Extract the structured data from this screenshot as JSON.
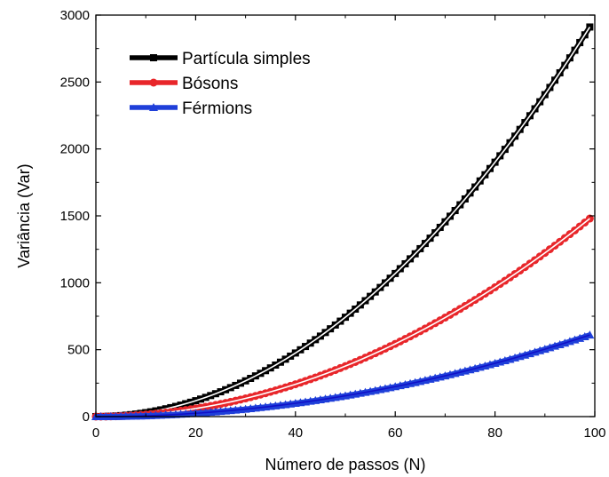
{
  "chart_data": {
    "type": "line",
    "title": "",
    "xlabel": "Número de passos (N)",
    "ylabel": "Variância (Var)",
    "xlim": [
      0,
      100
    ],
    "ylim": [
      0,
      3000
    ],
    "x_ticks": [
      "0",
      "20",
      "40",
      "60",
      "80",
      "100"
    ],
    "y_ticks": [
      "0",
      "500",
      "1000",
      "1500",
      "2000",
      "2500",
      "3000"
    ],
    "grid": false,
    "legend_position": "top-left",
    "x_range_data": [
      0,
      99
    ],
    "series": [
      {
        "name": "Partícula simples",
        "marker": "square",
        "color": "#000000",
        "fit_color": "#ffffff",
        "quadratic_coefficient": 0.297,
        "values_at": {
          "0": 0,
          "20": 119,
          "40": 475,
          "60": 1069,
          "80": 1901,
          "99": 2911
        }
      },
      {
        "name": "Bósons",
        "marker": "circle",
        "color": "#e8262a",
        "fit_color": "#ffffff",
        "quadratic_coefficient": 0.151,
        "values_at": {
          "0": 0,
          "20": 60,
          "40": 242,
          "60": 544,
          "80": 966,
          "99": 1480
        }
      },
      {
        "name": "Férmions",
        "marker": "triangle",
        "color": "#1f3fd9",
        "fit_color": "#1010c8",
        "quadratic_coefficient": 0.0622,
        "values_at": {
          "0": 0,
          "20": 25,
          "40": 100,
          "60": 224,
          "80": 398,
          "99": 610
        }
      }
    ]
  }
}
